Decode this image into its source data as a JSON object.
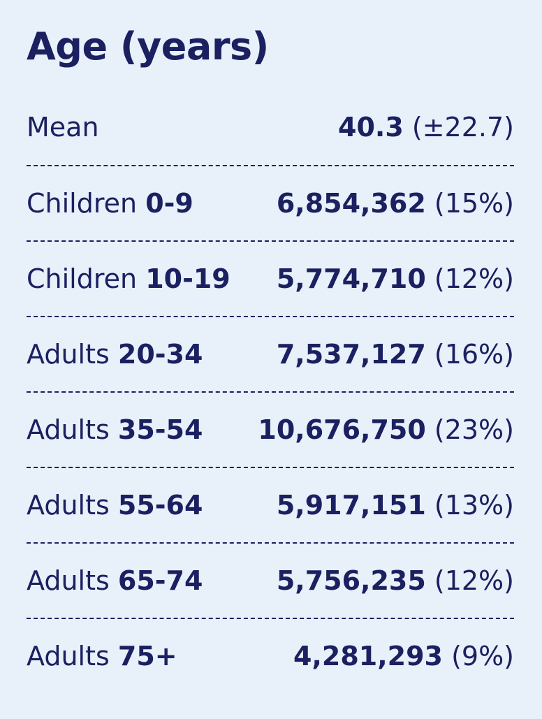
{
  "header": {
    "title": "Age (years)"
  },
  "mean": {
    "label": "Mean",
    "value": "40.3",
    "sd": "(±22.7)"
  },
  "groups": [
    {
      "category": "Children",
      "range": "0-9",
      "count": "6,854,362",
      "pct": "(15%)"
    },
    {
      "category": "Children",
      "range": "10-19",
      "count": "5,774,710",
      "pct": "(12%)"
    },
    {
      "category": "Adults",
      "range": "20-34",
      "count": "7,537,127",
      "pct": "(16%)"
    },
    {
      "category": "Adults",
      "range": "35-54",
      "count": "10,676,750",
      "pct": "(23%)"
    },
    {
      "category": "Adults",
      "range": "55-64",
      "count": "5,917,151",
      "pct": "(13%)"
    },
    {
      "category": "Adults",
      "range": "65-74",
      "count": "5,756,235",
      "pct": "(12%)"
    },
    {
      "category": "Adults",
      "range": "75+",
      "count": "4,281,293",
      "pct": "(9%)"
    }
  ],
  "colors": {
    "background": "#e8f0fa",
    "text": "#1b2060"
  }
}
